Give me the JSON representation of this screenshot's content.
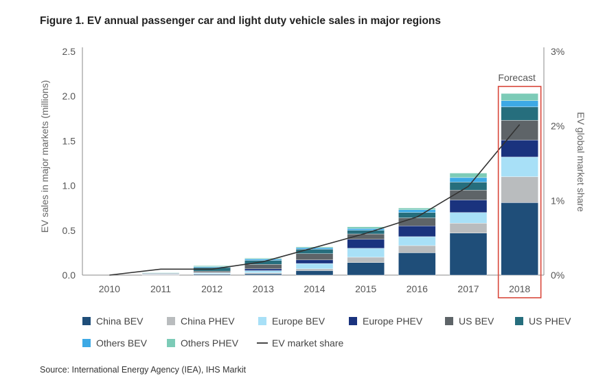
{
  "title": "Figure 1. EV annual passenger car and light duty vehicle sales in major regions",
  "source": "Source: International Energy Agency (IEA), IHS Markit",
  "chart_data": {
    "type": "bar",
    "stacked": true,
    "title": "Figure 1. EV annual passenger car and light duty vehicle sales in major regions",
    "ylabel": "EV sales in major markets (millions)",
    "y2label": "EV global market share",
    "ylim": [
      0,
      2.5
    ],
    "y2lim": [
      0,
      3
    ],
    "yticks": [
      "0.0",
      "0.5",
      "1.0",
      "1.5",
      "2.0",
      "2.5"
    ],
    "y2ticks": [
      "0%",
      "1%",
      "2%",
      "3%"
    ],
    "categories": [
      "2010",
      "2011",
      "2012",
      "2013",
      "2014",
      "2015",
      "2016",
      "2017",
      "2018"
    ],
    "annotation": "Forecast",
    "highlight_category": "2018",
    "highlight_color": "#d9473b",
    "legend_position": "bottom",
    "series": [
      {
        "name": "China BEV",
        "color": "#1f4e79",
        "values": [
          0.0,
          0.005,
          0.01,
          0.015,
          0.05,
          0.14,
          0.25,
          0.47,
          0.81
        ]
      },
      {
        "name": "China PHEV",
        "color": "#b9bcbe",
        "values": [
          0.0,
          0.002,
          0.005,
          0.01,
          0.02,
          0.06,
          0.08,
          0.11,
          0.29
        ]
      },
      {
        "name": "Europe BEV",
        "color": "#a8e0f7",
        "values": [
          0.0,
          0.003,
          0.01,
          0.025,
          0.06,
          0.1,
          0.1,
          0.12,
          0.22
        ]
      },
      {
        "name": "Europe PHEV",
        "color": "#1a337e",
        "values": [
          0.0,
          0.002,
          0.005,
          0.02,
          0.04,
          0.1,
          0.12,
          0.14,
          0.19
        ]
      },
      {
        "name": "US BEV",
        "color": "#5e6468",
        "values": [
          0.0,
          0.005,
          0.015,
          0.05,
          0.07,
          0.06,
          0.09,
          0.11,
          0.22
        ]
      },
      {
        "name": "US PHEV",
        "color": "#266e7d",
        "values": [
          0.0,
          0.007,
          0.04,
          0.045,
          0.05,
          0.04,
          0.06,
          0.09,
          0.15
        ]
      },
      {
        "name": "Others BEV",
        "color": "#3da9e5",
        "values": [
          0.0,
          0.003,
          0.01,
          0.015,
          0.015,
          0.02,
          0.03,
          0.05,
          0.07
        ]
      },
      {
        "name": "Others PHEV",
        "color": "#7ccbb7",
        "values": [
          0.0,
          0.003,
          0.01,
          0.01,
          0.01,
          0.02,
          0.02,
          0.05,
          0.08
        ]
      }
    ],
    "line": {
      "name": "EV market share",
      "color": "#333333",
      "axis": "right",
      "values": [
        0.0,
        0.08,
        0.08,
        0.18,
        0.37,
        0.56,
        0.78,
        1.19,
        2.02
      ]
    }
  }
}
